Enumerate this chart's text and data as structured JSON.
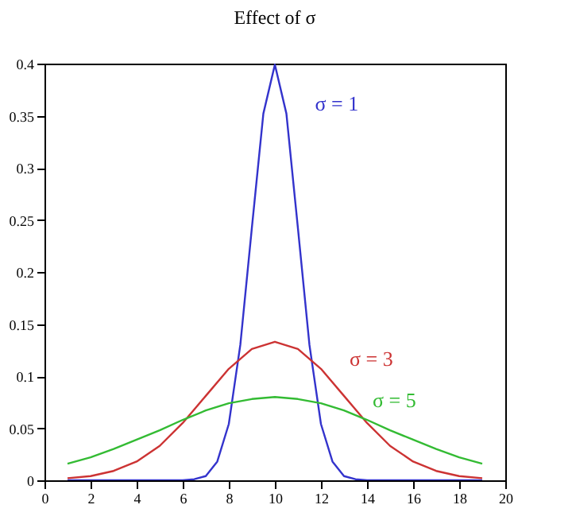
{
  "chart_data": {
    "type": "line",
    "title": "Effect of σ",
    "xlim": [
      0,
      20
    ],
    "xticks": [
      0,
      2,
      4,
      6,
      8,
      10,
      12,
      14,
      16,
      18,
      20
    ],
    "ylim": [
      0,
      0.4
    ],
    "yticks": [
      0,
      0.05,
      0.1,
      0.15,
      0.2,
      0.25,
      0.3,
      0.35,
      0.4
    ],
    "grid": false,
    "legend": false,
    "marker": "none",
    "line_style": "solid",
    "series": [
      {
        "name": "σ = 1",
        "color": "#3333cc",
        "x": [
          1,
          2,
          3,
          4,
          5,
          6,
          6.5,
          7,
          7.5,
          8,
          8.5,
          9,
          9.5,
          10,
          10.5,
          11,
          11.5,
          12,
          12.5,
          13,
          13.5,
          14,
          15,
          16,
          17,
          18,
          19
        ],
        "values": [
          0,
          0,
          0,
          0,
          0,
          0,
          0.001,
          0.004,
          0.018,
          0.054,
          0.13,
          0.242,
          0.352,
          0.399,
          0.352,
          0.242,
          0.13,
          0.054,
          0.018,
          0.004,
          0.001,
          0,
          0,
          0,
          0,
          0,
          0
        ]
      },
      {
        "name": "σ = 3",
        "color": "#cc3333",
        "x": [
          1,
          2,
          3,
          4,
          5,
          6,
          7,
          8,
          9,
          10,
          11,
          12,
          13,
          14,
          15,
          16,
          17,
          18,
          19
        ],
        "values": [
          0.002,
          0.004,
          0.009,
          0.018,
          0.033,
          0.055,
          0.081,
          0.107,
          0.126,
          0.133,
          0.126,
          0.107,
          0.081,
          0.055,
          0.033,
          0.018,
          0.009,
          0.004,
          0.002
        ]
      },
      {
        "name": "σ = 5",
        "color": "#33bb33",
        "x": [
          1,
          2,
          3,
          4,
          5,
          6,
          7,
          8,
          9,
          10,
          11,
          12,
          13,
          14,
          15,
          16,
          17,
          18,
          19
        ],
        "values": [
          0.016,
          0.022,
          0.03,
          0.039,
          0.048,
          0.058,
          0.067,
          0.074,
          0.078,
          0.08,
          0.078,
          0.074,
          0.067,
          0.058,
          0.048,
          0.039,
          0.03,
          0.022,
          0.016
        ]
      }
    ]
  }
}
